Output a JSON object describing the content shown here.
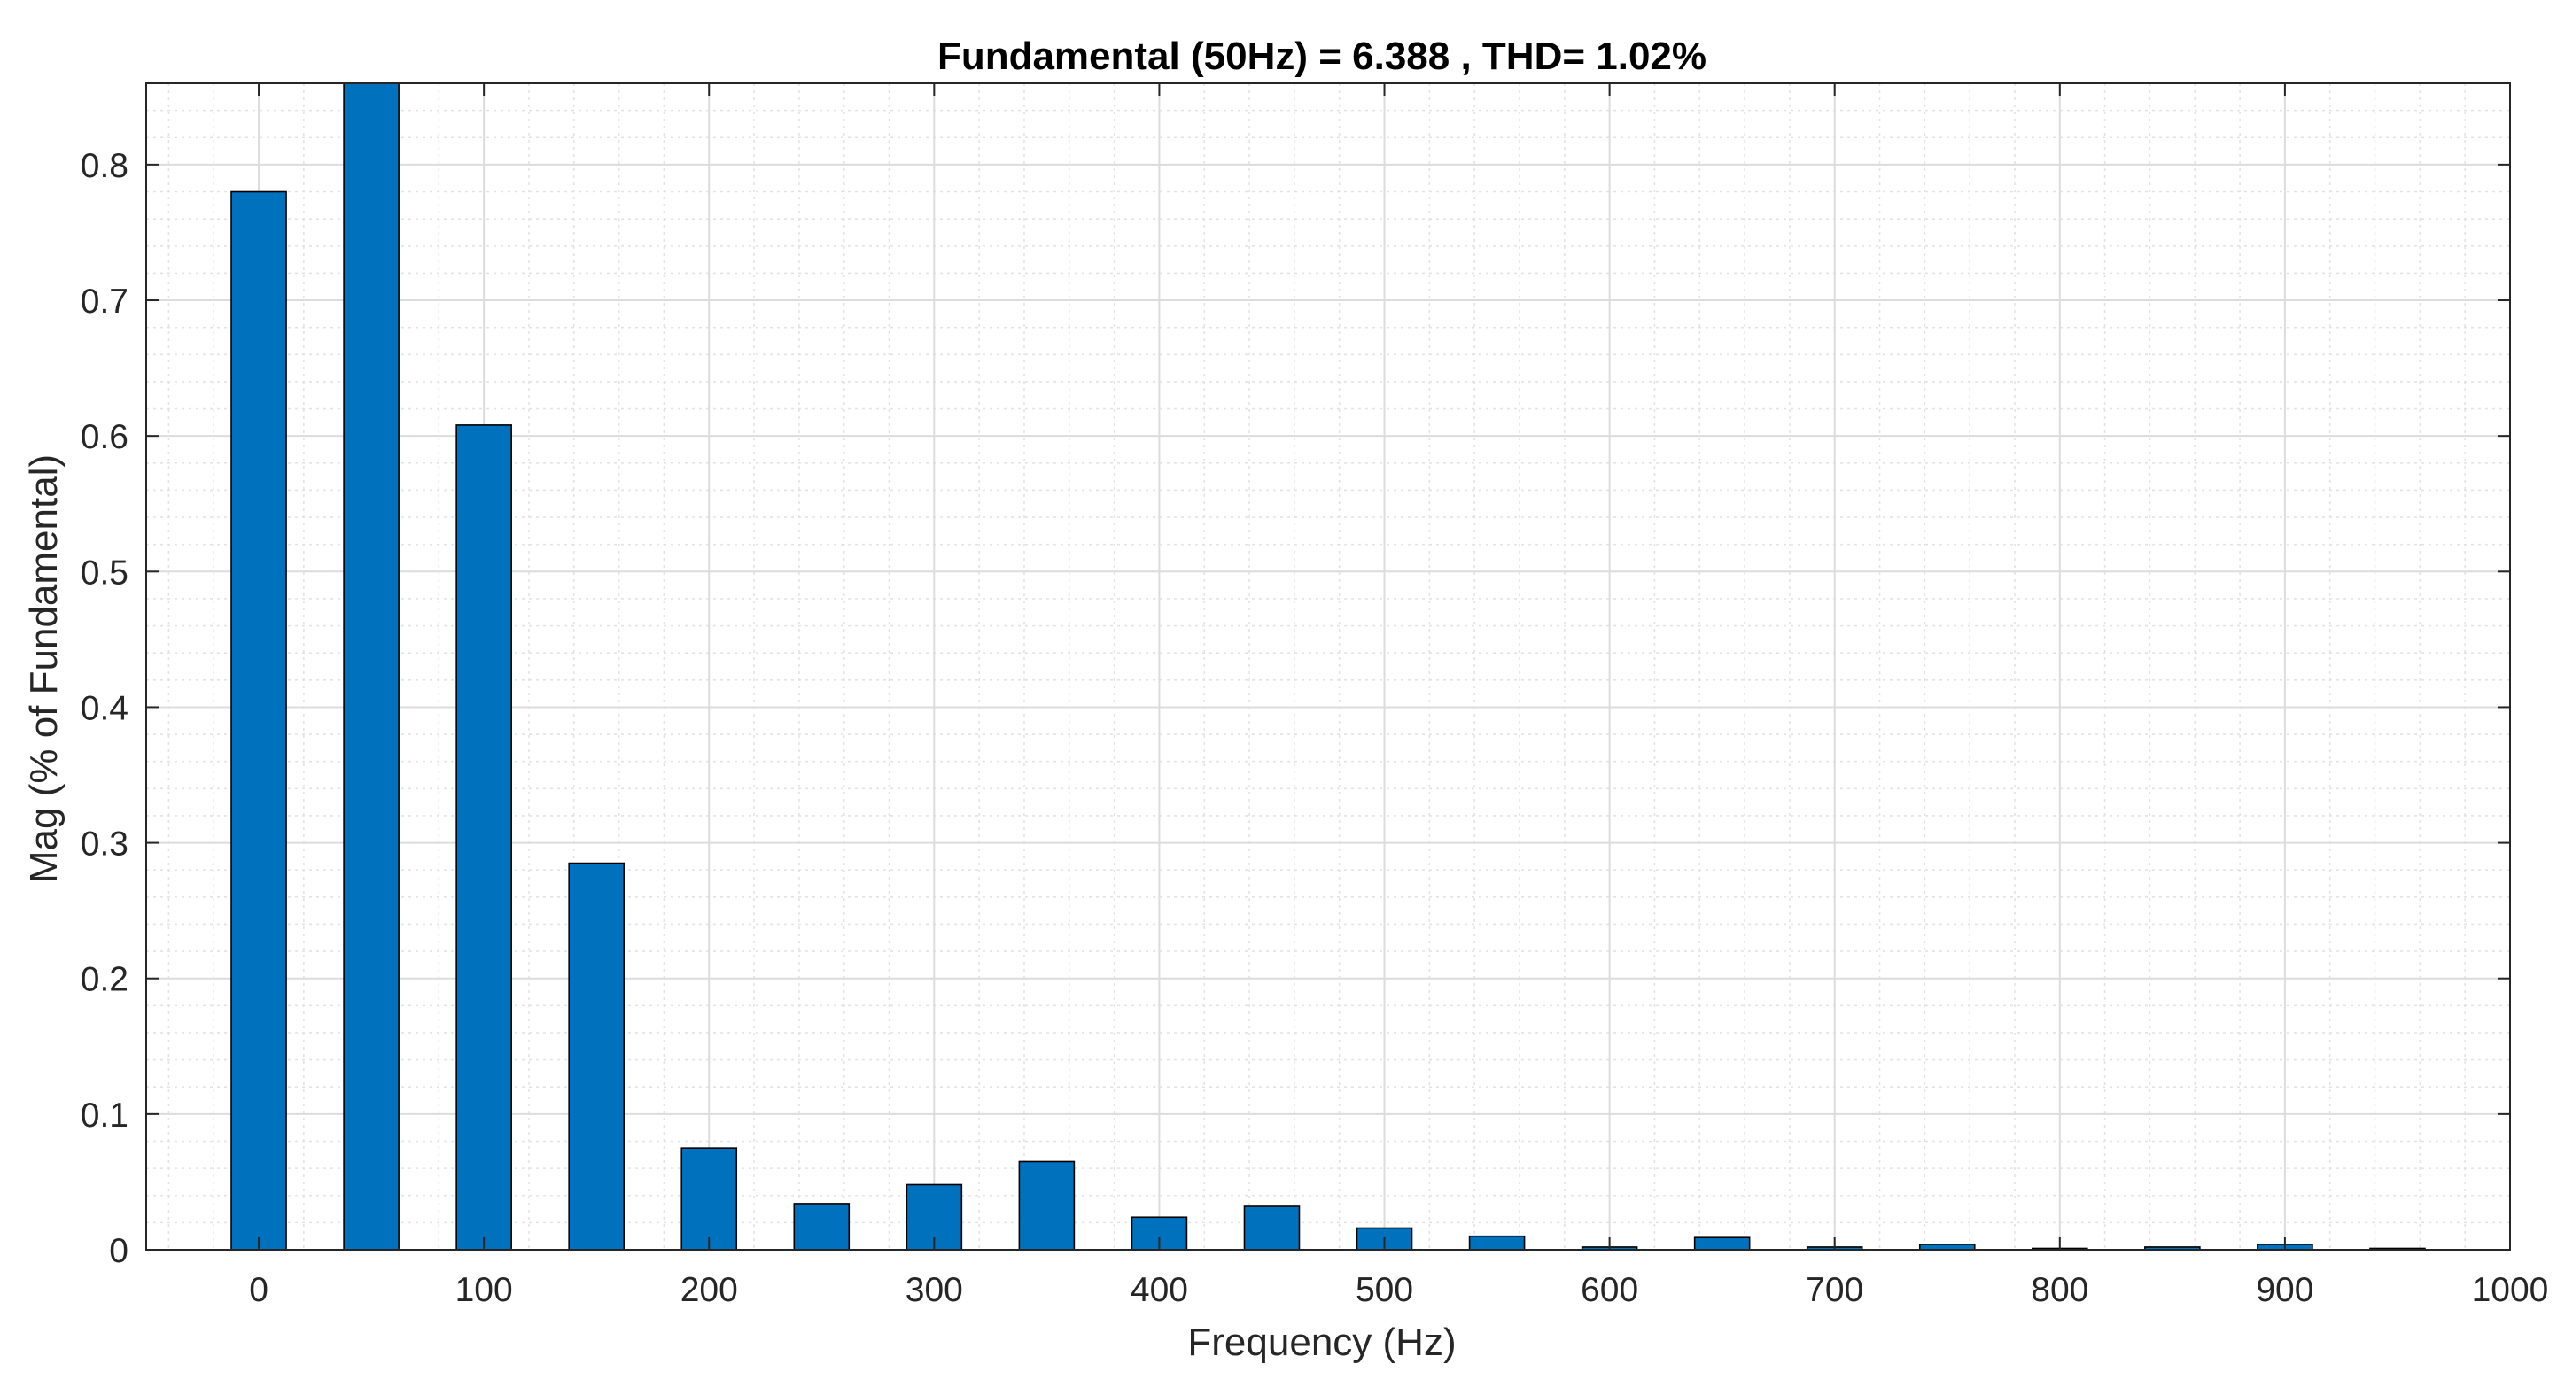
{
  "chart_data": {
    "type": "bar",
    "title": "Fundamental (50Hz) = 6.388 , THD= 1.02%",
    "xlabel": "Frequency (Hz)",
    "ylabel": "Mag (% of Fundamental)",
    "xlim": [
      -50,
      1000
    ],
    "ylim": [
      0,
      0.86
    ],
    "xticks": [
      "0",
      "100",
      "200",
      "300",
      "400",
      "500",
      "600",
      "700",
      "800",
      "900",
      "1000"
    ],
    "yticks": [
      "0",
      "0.1",
      "0.2",
      "0.3",
      "0.4",
      "0.5",
      "0.6",
      "0.7",
      "0.8"
    ],
    "x": [
      0,
      50,
      100,
      150,
      200,
      250,
      300,
      350,
      400,
      450,
      500,
      550,
      600,
      650,
      700,
      750,
      800,
      850,
      900,
      950
    ],
    "values": [
      0.78,
      0.86,
      0.608,
      0.285,
      0.075,
      0.034,
      0.048,
      0.065,
      0.024,
      0.032,
      0.016,
      0.01,
      0.002,
      0.009,
      0.002,
      0.004,
      0.001,
      0.002,
      0.004,
      0.001
    ],
    "bar_color": "#0072BD",
    "grid": true,
    "minor_grid": true
  }
}
